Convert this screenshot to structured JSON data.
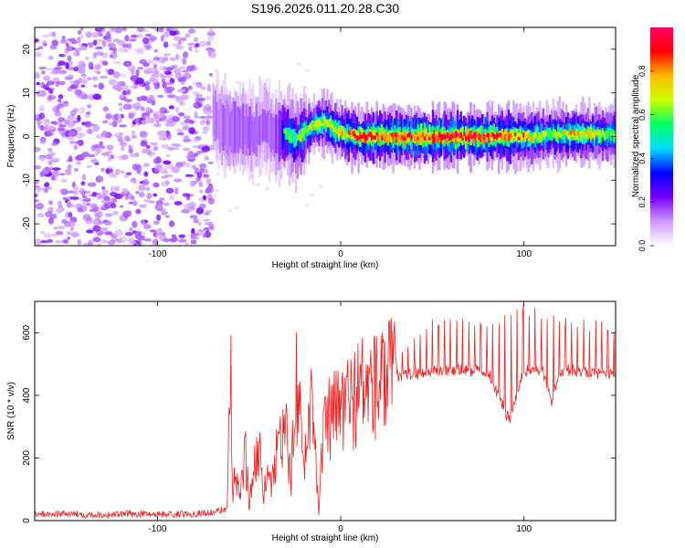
{
  "title": "S196.2026.011.20.28.C30",
  "chart_data": [
    {
      "type": "heatmap",
      "title": "S196.2026.011.20.28.C30",
      "xlabel": "Height of straight line (km)",
      "ylabel": "Frequency (Hz)",
      "xlim": [
        -167,
        150
      ],
      "ylim": [
        -25,
        25
      ],
      "xticks": [
        -100,
        0,
        100
      ],
      "yticks": [
        -20,
        -10,
        0,
        10,
        20
      ],
      "colorbar": {
        "label": "Normalized spectral amplitude",
        "range": [
          0,
          1
        ],
        "ticks": [
          0.0,
          0.2,
          0.4,
          0.6,
          0.8
        ],
        "colors": [
          "#ffffff",
          "#cc99ff",
          "#7700ff",
          "#0000ff",
          "#00ddff",
          "#00ff66",
          "#ccff00",
          "#ffbb00",
          "#ff0000",
          "#ff0066"
        ]
      },
      "noise_region": {
        "x_from": -167,
        "x_to": -70,
        "level": 0.1
      },
      "ridge": [
        {
          "x": -70,
          "freq": 5.0,
          "amp": 0.3
        },
        {
          "x": -66,
          "freq": 2.5,
          "amp": 0.35
        },
        {
          "x": -60,
          "freq": 1.5,
          "amp": 0.4
        },
        {
          "x": -55,
          "freq": 2.0,
          "amp": 0.35
        },
        {
          "x": -48,
          "freq": 0.5,
          "amp": 0.4
        },
        {
          "x": -42,
          "freq": 3.0,
          "amp": 0.35
        },
        {
          "x": -37,
          "freq": 0.0,
          "amp": 0.4
        },
        {
          "x": -30,
          "freq": 1.0,
          "amp": 0.55
        },
        {
          "x": -25,
          "freq": -1.0,
          "amp": 0.55
        },
        {
          "x": -20,
          "freq": 1.0,
          "amp": 0.6
        },
        {
          "x": -14,
          "freq": 3.0,
          "amp": 0.7
        },
        {
          "x": -8,
          "freq": 3.0,
          "amp": 0.7
        },
        {
          "x": -3,
          "freq": 1.5,
          "amp": 0.7
        },
        {
          "x": 3,
          "freq": 0.5,
          "amp": 0.75
        },
        {
          "x": 10,
          "freq": 0.0,
          "amp": 0.9
        },
        {
          "x": 40,
          "freq": 0.0,
          "amp": 0.9
        },
        {
          "x": 70,
          "freq": 0.0,
          "amp": 0.95
        },
        {
          "x": 90,
          "freq": 0.0,
          "amp": 0.85
        },
        {
          "x": 105,
          "freq": 0.0,
          "amp": 0.7
        },
        {
          "x": 115,
          "freq": 0.5,
          "amp": 0.6
        },
        {
          "x": 125,
          "freq": 0.5,
          "amp": 0.75
        },
        {
          "x": 150,
          "freq": 0.5,
          "amp": 0.6
        }
      ]
    },
    {
      "type": "line",
      "xlabel": "Height of straight line (km)",
      "ylabel": "SNR (10 * v/v)",
      "xlim": [
        -167,
        150
      ],
      "ylim": [
        0,
        700
      ],
      "xticks": [
        -100,
        0,
        100
      ],
      "yticks": [
        0,
        200,
        400,
        600
      ],
      "color": "#ee2222",
      "series": [
        {
          "name": "SNR",
          "x": [
            -167,
            -150,
            -130,
            -110,
            -90,
            -70,
            -62,
            -60,
            -59,
            -58,
            -55,
            -52,
            -50,
            -45,
            -42,
            -40,
            -38,
            -35,
            -30,
            -27,
            -25,
            -20,
            -15,
            -12,
            -10,
            -8,
            -5,
            0,
            5,
            10,
            20,
            30,
            40,
            60,
            80,
            92,
            100,
            110,
            115,
            120,
            130,
            140,
            150
          ],
          "y": [
            20,
            22,
            18,
            22,
            20,
            25,
            40,
            460,
            60,
            150,
            70,
            230,
            50,
            260,
            60,
            200,
            90,
            220,
            280,
            120,
            495,
            180,
            430,
            15,
            250,
            300,
            330,
            360,
            380,
            420,
            430,
            460,
            470,
            480,
            480,
            320,
            480,
            480,
            380,
            480,
            480,
            470,
            475
          ],
          "peak_envelope": [
            {
              "x": 30,
              "y": 530
            },
            {
              "x": 40,
              "y": 620
            },
            {
              "x": 50,
              "y": 650
            },
            {
              "x": 60,
              "y": 650
            },
            {
              "x": 70,
              "y": 650
            },
            {
              "x": 80,
              "y": 650
            },
            {
              "x": 90,
              "y": 670
            },
            {
              "x": 100,
              "y": 700
            },
            {
              "x": 110,
              "y": 680
            },
            {
              "x": 120,
              "y": 650
            },
            {
              "x": 130,
              "y": 650
            },
            {
              "x": 140,
              "y": 640
            },
            {
              "x": 150,
              "y": 640
            }
          ]
        }
      ]
    }
  ]
}
